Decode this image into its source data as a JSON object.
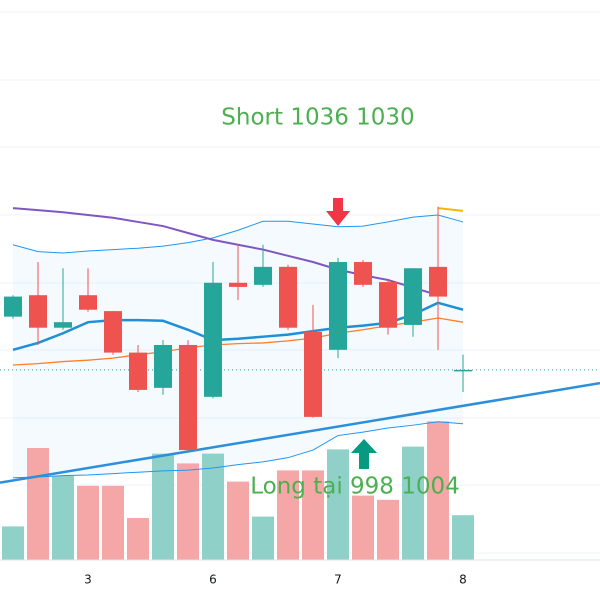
{
  "chart_data": {
    "type": "candlestick",
    "annotations": [
      "Short 1036 1030",
      "Long tại 998 1004"
    ],
    "categories": [
      null,
      null,
      null,
      "3",
      null,
      null,
      null,
      null,
      "6",
      null,
      null,
      null,
      null,
      "7",
      null,
      null,
      null,
      null,
      "8"
    ],
    "open": [
      1020.2,
      1023.3,
      1018.6,
      1023.3,
      1021.0,
      1015.0,
      1009.9,
      1016.1,
      1008.6,
      1025.1,
      1024.8,
      1027.4,
      1018.0,
      1015.4,
      1028.1,
      1025.2,
      1019.0,
      1027.4,
      1012.5
    ],
    "high": [
      1023.3,
      1028.1,
      1027.2,
      1027.2,
      1021.0,
      1016.1,
      1016.8,
      1016.8,
      1028.1,
      1030.6,
      1030.6,
      1027.7,
      1021.9,
      1028.7,
      1028.4,
      1025.5,
      1027.2,
      1036.1,
      1014.7
    ],
    "low": [
      1019.9,
      1016.1,
      1018.3,
      1020.9,
      1014.7,
      1009.3,
      1008.9,
      1000.6,
      1008.4,
      1022.6,
      1024.5,
      1018.3,
      1005.6,
      1014.2,
      1024.5,
      1017.6,
      1017.3,
      1015.4,
      1009.3
    ],
    "close": [
      1023.1,
      1018.6,
      1019.4,
      1021.2,
      1015.0,
      1009.6,
      1016.1,
      1000.9,
      1025.1,
      1024.5,
      1027.4,
      1018.6,
      1005.7,
      1028.1,
      1024.8,
      1018.6,
      1027.2,
      1023.1,
      1012.5
    ],
    "up_color": "#26a69a",
    "down_color": "#ef5350",
    "volume": {
      "values": [
        24,
        80,
        60,
        53,
        53,
        30,
        76,
        69,
        76,
        56,
        31,
        64,
        64,
        79,
        46,
        43,
        81,
        99,
        32
      ],
      "up_color": "#8fd1c8",
      "down_color": "#f5a6a6",
      "axis": "y2"
    },
    "ylim": [
      985,
      1066
    ],
    "y2lim": [
      0,
      400
    ],
    "band_fill": "#2196f3",
    "lines": [
      {
        "color": "#2196f3",
        "width": 1,
        "values": [
          1030.6,
          1029.6,
          1029.4,
          1029.7,
          1029.9,
          1030.1,
          1030.4,
          1030.9,
          1031.6,
          1032.7,
          1034.0,
          1034.0,
          1033.6,
          1033.2,
          1033.3,
          1033.9,
          1034.6,
          1034.9,
          1033.9
        ]
      },
      {
        "color": "#2196f3",
        "width": 1,
        "values": [
          996.9,
          997.0,
          997.2,
          997.3,
          997.5,
          997.7,
          997.9,
          998.0,
          998.3,
          998.8,
          999.2,
          999.8,
          1000.9,
          1003.0,
          1003.5,
          1004.1,
          1004.5,
          1005.0,
          1004.7
        ]
      },
      {
        "color": "#1f8fd6",
        "width": 2.5,
        "values": [
          1015.4,
          1016.4,
          1017.8,
          1019.4,
          1019.7,
          1019.7,
          1019.6,
          1018.3,
          1016.8,
          1017.0,
          1017.3,
          1017.6,
          1018.1,
          1018.6,
          1018.9,
          1019.3,
          1020.5,
          1022.2,
          1021.2
        ]
      },
      {
        "color": "#7e57c2",
        "width": 2,
        "values": [
          1035.9,
          1035.6,
          1035.3,
          1034.9,
          1034.5,
          1033.9,
          1033.3,
          1032.3,
          1031.3,
          1030.6,
          1029.9,
          1029.0,
          1028.1,
          1027.0,
          1026.2,
          1025.5,
          1024.4,
          1023.3,
          null
        ]
      },
      {
        "color": "#ff7f27",
        "width": 1.3,
        "values": [
          1013.2,
          1013.4,
          1013.7,
          1013.9,
          1014.2,
          1014.7,
          1015.1,
          1015.7,
          1016.1,
          1016.3,
          1016.4,
          1016.7,
          1017.1,
          1017.8,
          1018.3,
          1018.9,
          1019.4,
          1020.0,
          1019.4
        ]
      },
      {
        "color": "#f5b800",
        "width": 2,
        "values": [
          null,
          null,
          null,
          null,
          null,
          null,
          null,
          null,
          null,
          null,
          null,
          null,
          null,
          null,
          null,
          null,
          null,
          1035.9,
          1035.5
        ]
      }
    ],
    "trendline": {
      "color": "#2b8fdc",
      "x": [
        0,
        18
      ],
      "values": [
        996.5,
        1007.3
      ]
    },
    "last_price": {
      "value": 1012.5,
      "color": "#26a69a"
    }
  }
}
